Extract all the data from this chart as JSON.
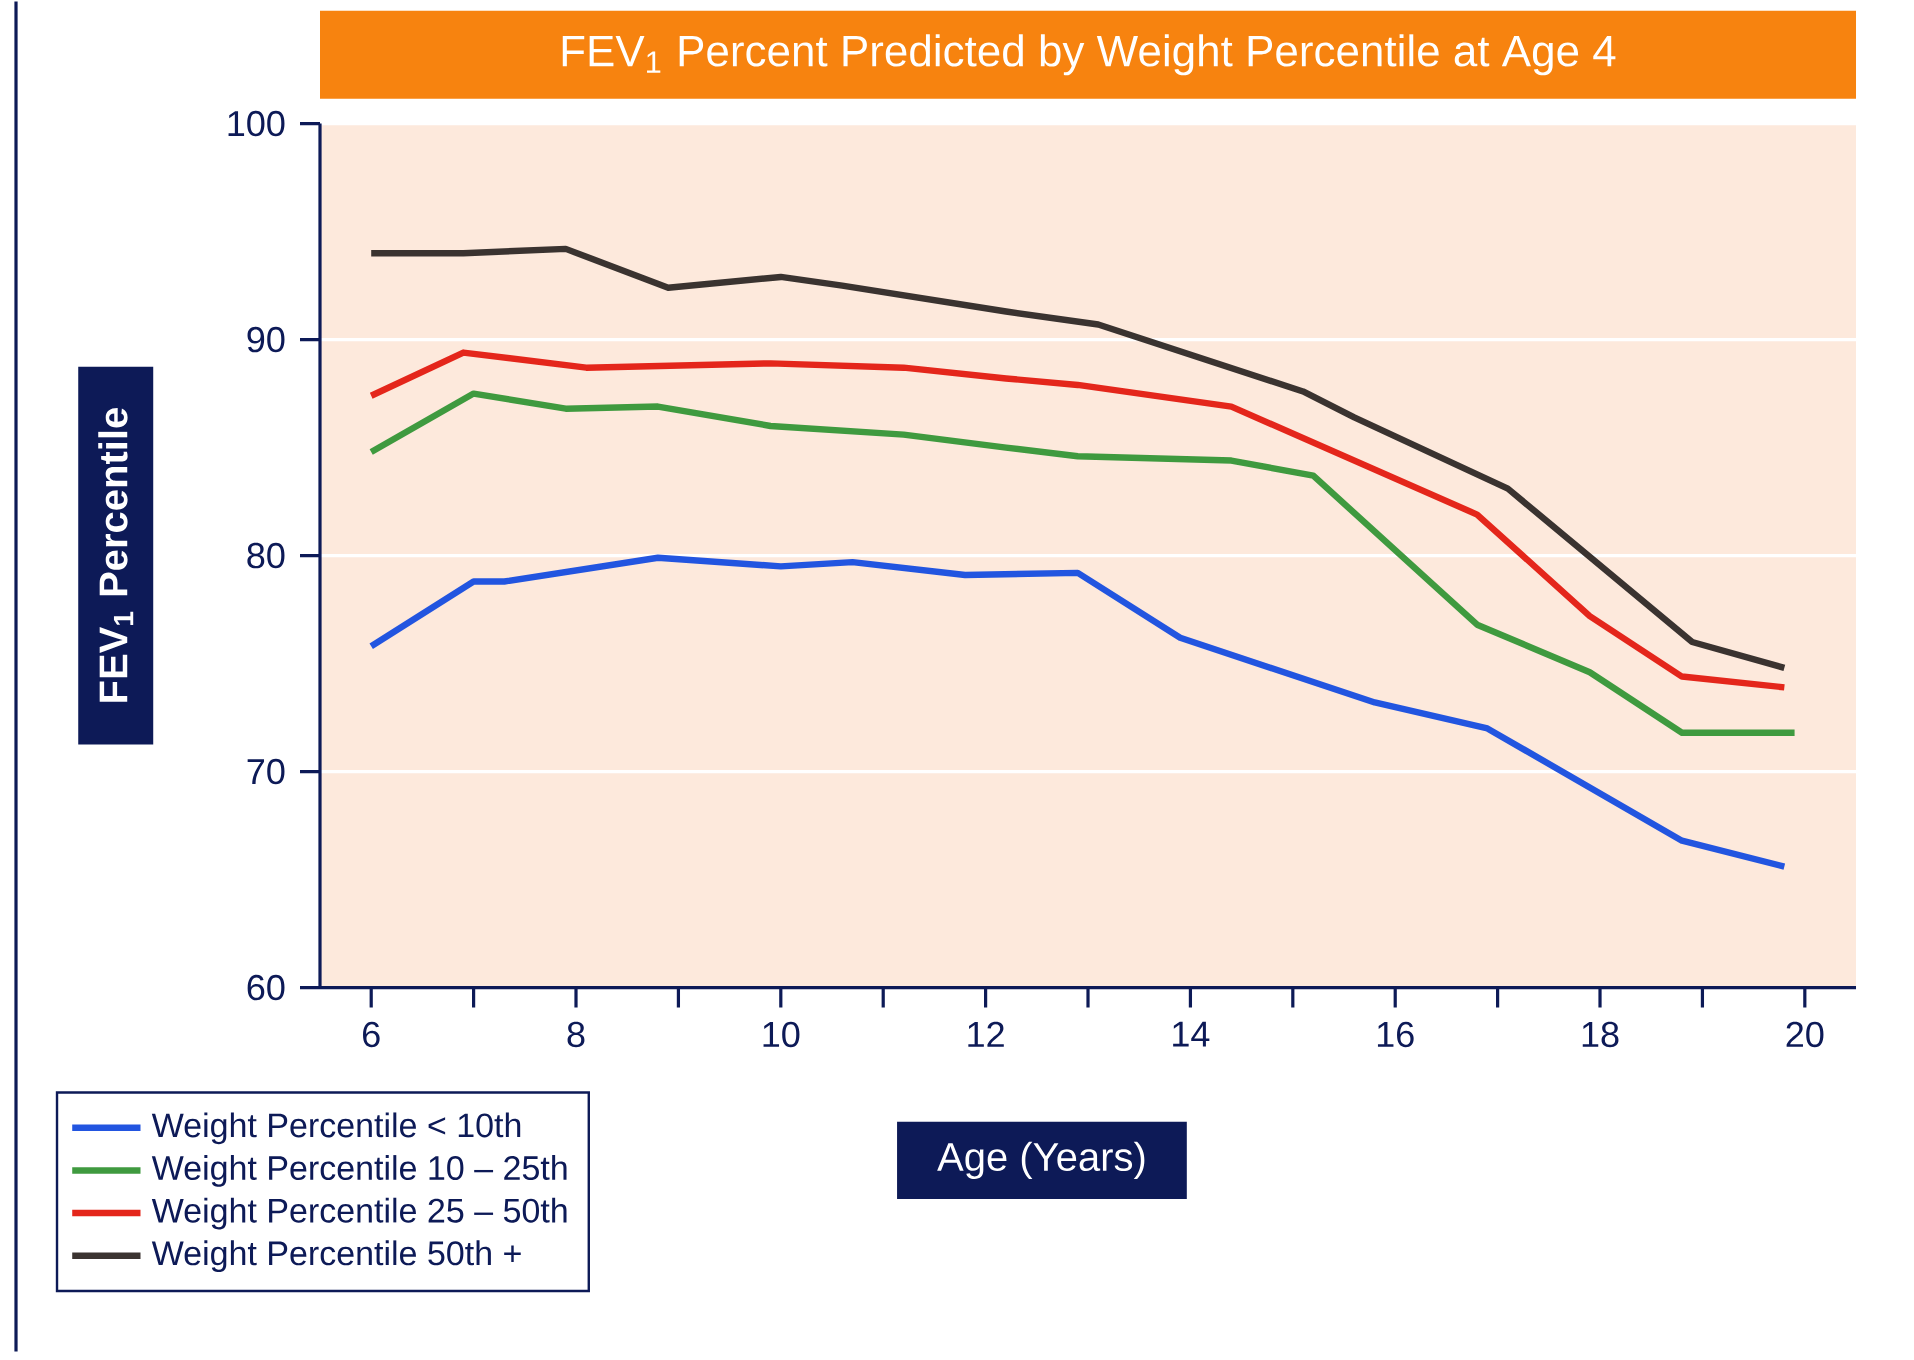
{
  "chart_data": {
    "type": "line",
    "title": "FEV$_{1}$ Percent Predicted by Weight Percentile at Age 4",
    "xlabel": "Age (Years)",
    "ylabel": "FEV$_{1}$ Percentile",
    "xlim": [
      5.5,
      20.5
    ],
    "ylim": [
      60,
      100
    ],
    "xticks": [
      6,
      {
        "value": 7,
        "label": null
      },
      8,
      {
        "value": 9,
        "label": null
      },
      10,
      {
        "value": 11,
        "label": null
      },
      12,
      {
        "value": 13,
        "label": null
      },
      14,
      {
        "value": 15,
        "label": null
      },
      16,
      {
        "value": 17,
        "label": null
      },
      18,
      {
        "value": 19,
        "label": null
      },
      20
    ],
    "yticks": [
      60,
      70,
      80,
      90,
      100
    ],
    "grid": "y",
    "legend": "bottom left",
    "marker": "none",
    "line_style": "solid",
    "series": [
      {
        "name": "Weight Percentile < 10th",
        "color": "#2255e0",
        "x": [
          6.0,
          7.0,
          7.3,
          8.8,
          10.0,
          10.7,
          11.8,
          12.9,
          13.9,
          15.8,
          16.9,
          18.8,
          19.8
        ],
        "values": [
          75.8,
          78.8,
          78.8,
          79.9,
          79.5,
          79.7,
          79.1,
          79.2,
          76.2,
          73.2,
          72.0,
          66.8,
          65.6
        ]
      },
      {
        "name": "Weight Percentile 10 – 25th",
        "color": "#3f9a3f",
        "x": [
          6.0,
          7.0,
          7.9,
          8.8,
          9.9,
          11.2,
          12.2,
          12.9,
          14.4,
          15.2,
          16.8,
          17.9,
          18.8,
          19.9
        ],
        "values": [
          84.8,
          87.5,
          86.8,
          86.9,
          86.0,
          85.6,
          85.0,
          84.6,
          84.4,
          83.7,
          76.8,
          74.6,
          71.8,
          71.8
        ]
      },
      {
        "name": "Weight Percentile 25 – 50th",
        "color": "#e4261b",
        "x": [
          6.0,
          6.9,
          8.1,
          9.9,
          11.2,
          12.2,
          12.9,
          14.4,
          16.8,
          17.9,
          18.8,
          19.8
        ],
        "values": [
          87.4,
          89.4,
          88.7,
          88.9,
          88.7,
          88.2,
          87.9,
          86.9,
          81.9,
          77.2,
          74.4,
          73.9
        ]
      },
      {
        "name": "Weight Percentile 50th +",
        "color": "#3a3330",
        "x": [
          6.0,
          6.9,
          7.9,
          8.9,
          10.0,
          10.6,
          12.2,
          13.1,
          15.1,
          15.6,
          17.1,
          18.9,
          19.8
        ],
        "values": [
          94.0,
          94.0,
          94.2,
          92.4,
          92.9,
          92.5,
          91.3,
          90.7,
          87.6,
          86.4,
          83.1,
          76.0,
          74.8
        ]
      }
    ]
  }
}
